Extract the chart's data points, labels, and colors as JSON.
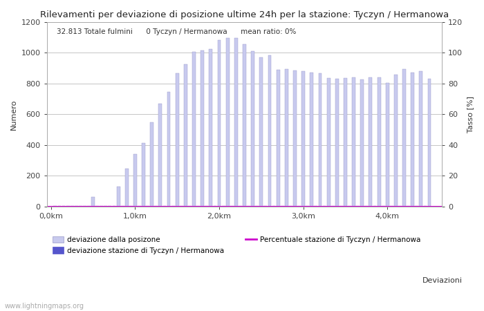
{
  "title": "Rilevamenti per deviazione di posizione ultime 24h per la stazione: Tyczyn / Hermanowa",
  "subtitle": "32.813 Totale fulmini      0 Tyczyn / Hermanowa      mean ratio: 0%",
  "ylabel_left": "Numero",
  "ylabel_right": "Tasso [%]",
  "xlabel_right": "Deviazioni",
  "watermark": "www.lightningmaps.org",
  "ylim_left": [
    0,
    1200
  ],
  "ylim_right": [
    0,
    120
  ],
  "yticks_left": [
    0,
    200,
    400,
    600,
    800,
    1000,
    1200
  ],
  "yticks_right": [
    0,
    20,
    40,
    60,
    80,
    100,
    120
  ],
  "xtick_positions": [
    0.0,
    1.0,
    2.0,
    3.0,
    4.0
  ],
  "xtick_labels": [
    "0,0km",
    "1,0km",
    "2,0km",
    "3,0km",
    "4,0km"
  ],
  "bar_color": "#c8caee",
  "bar_edge_color": "#9898c8",
  "station_bar_color": "#5555cc",
  "line_color": "#cc00cc",
  "background_color": "#ffffff",
  "grid_color": "#bbbbbb",
  "legend_label_1": "deviazione dalla posizone",
  "legend_label_2": "deviazione stazione di Tyczyn / Hermanowa",
  "legend_label_3": "Percentuale stazione di Tyczyn / Hermanowa",
  "bar_positions": [
    0.05,
    0.1,
    0.15,
    0.2,
    0.25,
    0.3,
    0.35,
    0.4,
    0.45,
    0.5,
    0.55,
    0.6,
    0.65,
    0.7,
    0.75,
    0.8,
    0.85,
    0.9,
    0.95,
    1.0,
    1.05,
    1.1,
    1.15,
    1.2,
    1.25,
    1.3,
    1.35,
    1.4,
    1.45,
    1.5,
    1.55,
    1.6,
    1.65,
    1.7,
    1.75,
    1.8,
    1.85,
    1.9,
    1.95,
    2.0,
    2.05,
    2.1,
    2.15,
    2.2,
    2.25,
    2.3,
    2.35,
    2.4,
    2.45,
    2.5,
    2.55,
    2.6,
    2.65,
    2.7,
    2.75,
    2.8,
    2.85,
    2.9,
    2.95,
    3.0,
    3.05,
    3.1,
    3.15,
    3.2,
    3.25,
    3.3,
    3.35,
    3.4,
    3.45,
    3.5,
    3.55,
    3.6,
    3.65,
    3.7,
    3.75,
    3.8,
    3.85,
    3.9,
    3.95,
    4.0,
    4.05,
    4.1,
    4.15,
    4.2,
    4.25,
    4.3,
    4.35,
    4.4,
    4.45,
    4.5
  ],
  "bar_heights": [
    2,
    2,
    2,
    2,
    2,
    2,
    2,
    2,
    2,
    60,
    2,
    2,
    2,
    2,
    2,
    130,
    2,
    245,
    2,
    340,
    2,
    415,
    2,
    550,
    2,
    670,
    2,
    745,
    2,
    865,
    2,
    925,
    2,
    1005,
    2,
    1015,
    2,
    1025,
    2,
    1085,
    2,
    1095,
    2,
    1095,
    2,
    1055,
    2,
    1010,
    2,
    970,
    2,
    985,
    2,
    890,
    2,
    895,
    2,
    885,
    2,
    880,
    2,
    870,
    2,
    865,
    2,
    835,
    2,
    830,
    2,
    835,
    2,
    840,
    2,
    825,
    2,
    840,
    2,
    840,
    2,
    805,
    2,
    860,
    2,
    895,
    2,
    870,
    2,
    880,
    2,
    830
  ],
  "xlim": [
    -0.05,
    4.65
  ],
  "bar_width": 0.04
}
